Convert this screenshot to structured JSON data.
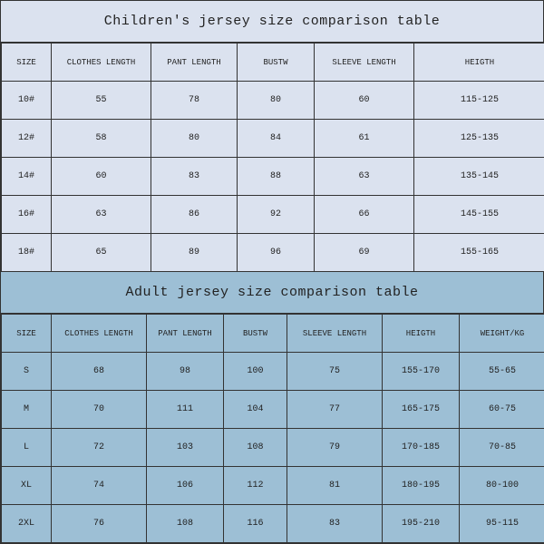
{
  "children": {
    "title": "Children's jersey size comparison table",
    "columns": [
      "SIZE",
      "CLOTHES LENGTH",
      "PANT LENGTH",
      "BUSTW",
      "SLEEVE LENGTH",
      "HEIGTH"
    ],
    "col_widths": [
      "55px",
      "110px",
      "95px",
      "85px",
      "110px",
      "145px"
    ],
    "rows": [
      [
        "10#",
        "55",
        "78",
        "80",
        "60",
        "115-125"
      ],
      [
        "12#",
        "58",
        "80",
        "84",
        "61",
        "125-135"
      ],
      [
        "14#",
        "60",
        "83",
        "88",
        "63",
        "135-145"
      ],
      [
        "16#",
        "63",
        "86",
        "92",
        "66",
        "145-155"
      ],
      [
        "18#",
        "65",
        "89",
        "96",
        "69",
        "155-165"
      ]
    ],
    "title_bg": "#dbe2ef",
    "cell_bg": "#dbe2ef"
  },
  "adult": {
    "title": "Adult jersey size comparison table",
    "columns": [
      "SIZE",
      "CLOTHES LENGTH",
      "PANT LENGTH",
      "BUSTW",
      "SLEEVE LENGTH",
      "HEIGTH",
      "WEIGHT/KG"
    ],
    "col_widths": [
      "55px",
      "105px",
      "85px",
      "70px",
      "105px",
      "85px",
      "95px"
    ],
    "rows": [
      [
        "S",
        "68",
        "98",
        "100",
        "75",
        "155-170",
        "55-65"
      ],
      [
        "M",
        "70",
        "111",
        "104",
        "77",
        "165-175",
        "60-75"
      ],
      [
        "L",
        "72",
        "103",
        "108",
        "79",
        "170-185",
        "70-85"
      ],
      [
        "XL",
        "74",
        "106",
        "112",
        "81",
        "180-195",
        "80-100"
      ],
      [
        "2XL",
        "76",
        "108",
        "116",
        "83",
        "195-210",
        "95-115"
      ]
    ],
    "title_bg": "#9dbfd5",
    "cell_bg": "#9dbfd5"
  },
  "border_color": "#333333",
  "text_color": "#222222",
  "title_fontsize": 15,
  "cell_fontsize": 10,
  "header_fontsize": 9,
  "font_family": "Courier New, monospace"
}
